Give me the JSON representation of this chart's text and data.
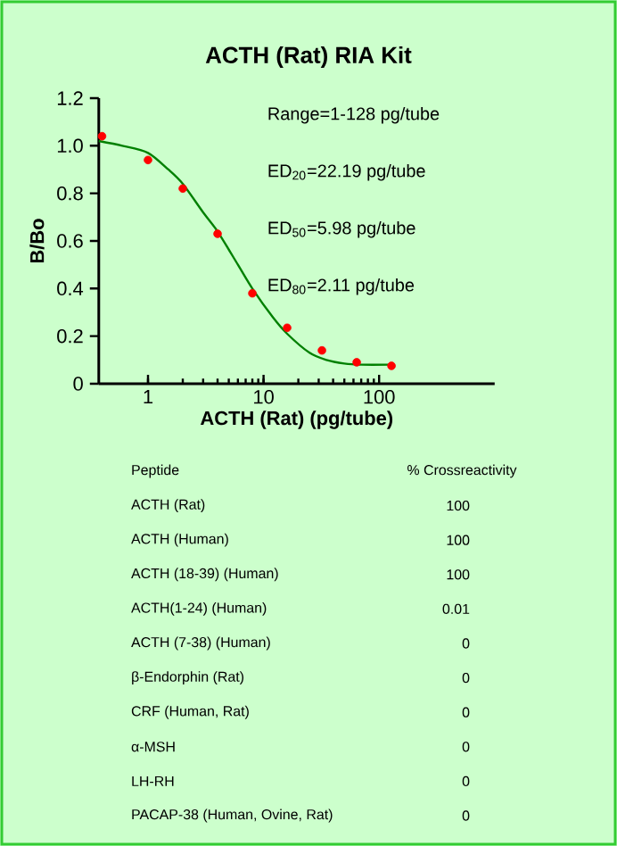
{
  "chart_data": {
    "type": "scatter",
    "title": "ACTH (Rat) RIA Kit",
    "xlabel": "ACTH  (Rat) (pg/tube)",
    "ylabel": "B/Bo",
    "log": "x",
    "xlim": [
      0.375,
      1000
    ],
    "xticks": [
      1,
      10,
      100
    ],
    "ylim": [
      0,
      1.2
    ],
    "yticks": [
      {
        "value": 0,
        "label": "0"
      },
      0.2,
      0.4,
      0.6,
      0.8,
      {
        "value": 1,
        "label": "1.0"
      },
      1.2
    ],
    "series": [
      {
        "type": "line",
        "color": "#008000",
        "marker": "none",
        "x": [
          0.375,
          0.6,
          1,
          1.5,
          2,
          3,
          4,
          6,
          8,
          12,
          16,
          25,
          35,
          50,
          70,
          128
        ],
        "values": [
          1.02,
          1.0,
          0.97,
          0.9,
          0.84,
          0.72,
          0.64,
          0.5,
          0.4,
          0.28,
          0.21,
          0.13,
          0.1,
          0.085,
          0.08,
          0.08
        ]
      },
      {
        "color": "#ff0000",
        "marker": "circle",
        "x": [
          0.4,
          1,
          2,
          4,
          8,
          16,
          32,
          64,
          128
        ],
        "values": [
          1.04,
          0.94,
          0.82,
          0.63,
          0.38,
          0.235,
          0.14,
          0.09,
          0.075
        ]
      }
    ],
    "annotations": [
      "Range=1-128 pg/tube",
      "ED$_{20}$=22.19 pg/tube",
      "ED$_{50}$=5.98 pg/tube",
      "ED$_{80}$=2.11 pg/tube",
      "Peptide",
      "% Crossreactivity",
      "ACTH (Rat)",
      "100",
      "ACTH (Human)",
      "100",
      "ACTH (18-39) (Human)",
      "100",
      "ACTH(1-24) (Human)",
      "0.01",
      "ACTH (7-38) (Human)",
      "0",
      "β-Endorphin  (Rat)",
      "0",
      "CRF (Human, Rat)",
      "0",
      "α-MSH",
      "0",
      "LH-RH",
      "0",
      "PACAP-38 (Human, Ovine, Rat)",
      "0"
    ]
  }
}
